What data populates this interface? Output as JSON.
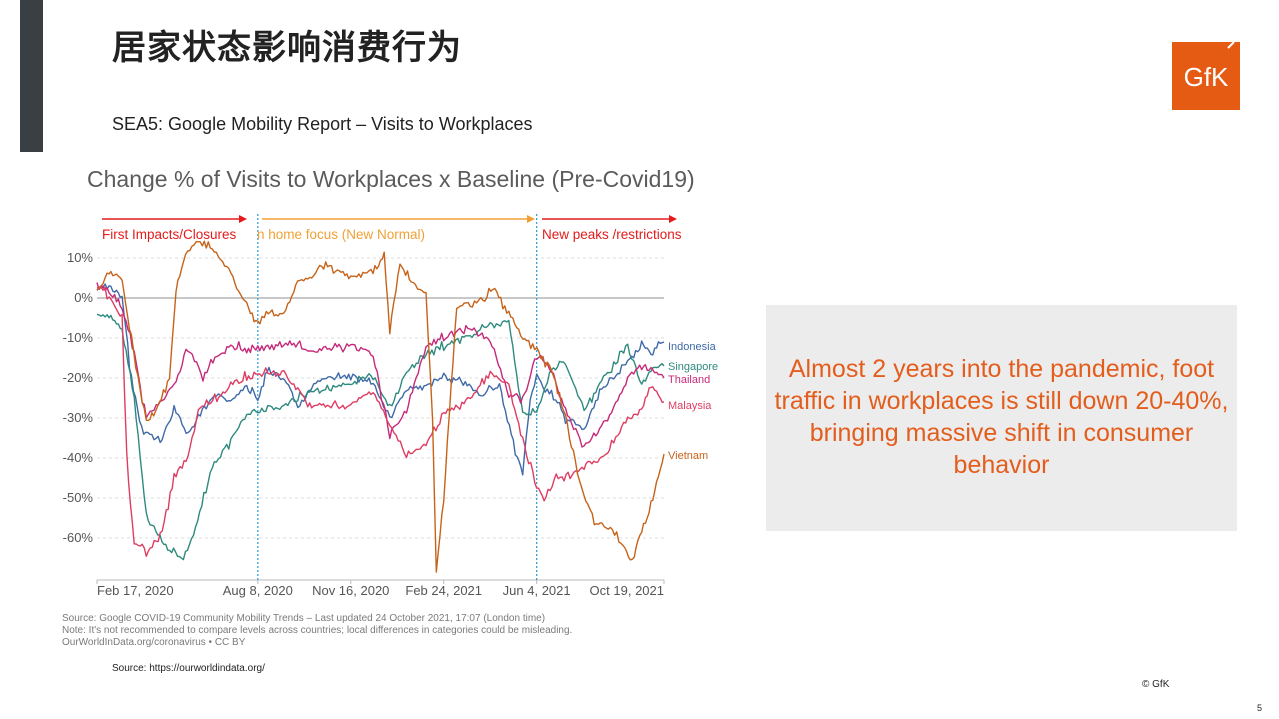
{
  "slide": {
    "title": "居家状态影响消费行为",
    "subtitle": "SEA5: Google Mobility Report – Visits to Workplaces",
    "logo_text": "GfK",
    "callout": "Almost 2 years into the pandemic, foot traffic in workplaces is still down 20-40%, bringing massive shift in consumer behavior",
    "notes": [
      "Source: Google COVID-19 Community Mobility Trends – Last updated 24 October 2021, 17:07 (London time)",
      "Note: It's not recommended to compare levels across countries; local differences in categories could be misleading.",
      "OurWorldInData.org/coronavirus • CC BY"
    ],
    "source": "Source: https://ourworldindata.org/",
    "copyright": "© GfK",
    "page_number": "5",
    "colors": {
      "accent": "#e55b13",
      "left_bar": "#3a3f44",
      "callout_bg": "#ececec",
      "callout_text": "#e35d1c"
    }
  },
  "chart_data": {
    "type": "line",
    "title": "Change % of Visits to Workplaces x Baseline (Pre-Covid19)",
    "x_labels": [
      "Feb 17, 2020",
      "Aug 8, 2020",
      "Nov 16, 2020",
      "Feb 24, 2021",
      "Jun 4, 2021",
      "Oct 19, 2021"
    ],
    "x_range": [
      "2020-02-17",
      "2021-10-19"
    ],
    "ylim": [
      -70,
      12
    ],
    "y_ticks": [
      10,
      0,
      -10,
      -20,
      -30,
      -40,
      -50,
      -60
    ],
    "y_tick_labels": [
      "10%",
      "0%",
      "-10%",
      "-20%",
      "-30%",
      "-40%",
      "-50%",
      "-60%"
    ],
    "grid": true,
    "phases": [
      {
        "label": "First Impacts/Closures",
        "start": "2020-02-17",
        "end": "2020-08-08",
        "color": "#e31b1b"
      },
      {
        "label": "n home focus (New Normal)",
        "start": "2020-08-08",
        "end": "2021-06-04",
        "color": "#f0a136"
      },
      {
        "label": "New peaks /restrictions",
        "start": "2021-06-04",
        "end": "2021-10-19",
        "color": "#e31b1b"
      }
    ],
    "phase_dividers": [
      "2020-08-08",
      "2021-06-04"
    ],
    "series": [
      {
        "name": "Indonesia",
        "color": "#3f6aa8",
        "points": [
          [
            "2020-02-17",
            2
          ],
          [
            "2020-03-01",
            3
          ],
          [
            "2020-03-15",
            0
          ],
          [
            "2020-03-25",
            -20
          ],
          [
            "2020-04-05",
            -33
          ],
          [
            "2020-04-25",
            -36
          ],
          [
            "2020-05-10",
            -28
          ],
          [
            "2020-05-25",
            -34
          ],
          [
            "2020-06-05",
            -30
          ],
          [
            "2020-06-20",
            -24
          ],
          [
            "2020-07-10",
            -26
          ],
          [
            "2020-07-25",
            -22
          ],
          [
            "2020-08-08",
            -25
          ],
          [
            "2020-08-20",
            -18
          ],
          [
            "2020-09-10",
            -22
          ],
          [
            "2020-09-20",
            -28
          ],
          [
            "2020-10-05",
            -22
          ],
          [
            "2020-10-25",
            -20
          ],
          [
            "2020-11-16",
            -19
          ],
          [
            "2020-12-10",
            -21
          ],
          [
            "2020-12-28",
            -30
          ],
          [
            "2021-01-15",
            -23
          ],
          [
            "2021-02-05",
            -22
          ],
          [
            "2021-02-24",
            -20
          ],
          [
            "2021-03-15",
            -21
          ],
          [
            "2021-04-05",
            -24
          ],
          [
            "2021-04-25",
            -22
          ],
          [
            "2021-05-12",
            -38
          ],
          [
            "2021-05-20",
            -44
          ],
          [
            "2021-05-28",
            -25
          ],
          [
            "2021-06-04",
            -20
          ],
          [
            "2021-06-20",
            -24
          ],
          [
            "2021-07-05",
            -30
          ],
          [
            "2021-07-25",
            -33
          ],
          [
            "2021-08-15",
            -22
          ],
          [
            "2021-09-10",
            -16
          ],
          [
            "2021-09-25",
            -12
          ],
          [
            "2021-10-05",
            -14
          ],
          [
            "2021-10-19",
            -11
          ]
        ]
      },
      {
        "name": "Singapore",
        "color": "#2f8a7e",
        "points": [
          [
            "2020-02-17",
            -5
          ],
          [
            "2020-03-01",
            -4
          ],
          [
            "2020-03-15",
            -8
          ],
          [
            "2020-03-28",
            -25
          ],
          [
            "2020-04-10",
            -55
          ],
          [
            "2020-05-01",
            -62
          ],
          [
            "2020-05-20",
            -65
          ],
          [
            "2020-06-02",
            -58
          ],
          [
            "2020-06-20",
            -42
          ],
          [
            "2020-07-10",
            -36
          ],
          [
            "2020-07-25",
            -30
          ],
          [
            "2020-08-08",
            -28
          ],
          [
            "2020-09-05",
            -27
          ],
          [
            "2020-10-05",
            -23
          ],
          [
            "2020-11-16",
            -22
          ],
          [
            "2020-12-10",
            -19
          ],
          [
            "2020-12-28",
            -28
          ],
          [
            "2021-01-15",
            -18
          ],
          [
            "2021-02-05",
            -14
          ],
          [
            "2021-02-24",
            -12
          ],
          [
            "2021-03-20",
            -10
          ],
          [
            "2021-04-15",
            -7
          ],
          [
            "2021-05-05",
            -6
          ],
          [
            "2021-05-20",
            -29
          ],
          [
            "2021-06-04",
            -28
          ],
          [
            "2021-06-20",
            -18
          ],
          [
            "2021-07-05",
            -16
          ],
          [
            "2021-07-25",
            -28
          ],
          [
            "2021-08-15",
            -20
          ],
          [
            "2021-09-10",
            -12
          ],
          [
            "2021-09-25",
            -22
          ],
          [
            "2021-10-05",
            -18
          ],
          [
            "2021-10-19",
            -17
          ]
        ]
      },
      {
        "name": "Thailand",
        "color": "#c6297a",
        "points": [
          [
            "2020-02-17",
            3
          ],
          [
            "2020-03-01",
            2
          ],
          [
            "2020-03-15",
            -2
          ],
          [
            "2020-03-28",
            -14
          ],
          [
            "2020-04-10",
            -30
          ],
          [
            "2020-04-25",
            -26
          ],
          [
            "2020-05-10",
            -22
          ],
          [
            "2020-05-25",
            -12
          ],
          [
            "2020-06-10",
            -20
          ],
          [
            "2020-06-25",
            -14
          ],
          [
            "2020-07-10",
            -12
          ],
          [
            "2020-07-25",
            -13
          ],
          [
            "2020-08-08",
            -13
          ],
          [
            "2020-09-05",
            -11
          ],
          [
            "2020-10-05",
            -13
          ],
          [
            "2020-11-16",
            -12
          ],
          [
            "2020-12-10",
            -14
          ],
          [
            "2020-12-28",
            -34
          ],
          [
            "2021-01-15",
            -28
          ],
          [
            "2021-02-05",
            -12
          ],
          [
            "2021-02-24",
            -10
          ],
          [
            "2021-03-20",
            -8
          ],
          [
            "2021-04-15",
            -10
          ],
          [
            "2021-05-05",
            -24
          ],
          [
            "2021-05-20",
            -26
          ],
          [
            "2021-06-04",
            -14
          ],
          [
            "2021-06-20",
            -18
          ],
          [
            "2021-07-05",
            -28
          ],
          [
            "2021-07-25",
            -37
          ],
          [
            "2021-08-15",
            -32
          ],
          [
            "2021-09-10",
            -20
          ],
          [
            "2021-09-25",
            -17
          ],
          [
            "2021-10-05",
            -18
          ],
          [
            "2021-10-19",
            -20
          ]
        ]
      },
      {
        "name": "Malaysia",
        "color": "#de3d62",
        "points": [
          [
            "2020-02-17",
            3
          ],
          [
            "2020-03-01",
            0
          ],
          [
            "2020-03-15",
            -5
          ],
          [
            "2020-03-20",
            -40
          ],
          [
            "2020-03-28",
            -62
          ],
          [
            "2020-04-10",
            -63
          ],
          [
            "2020-04-25",
            -60
          ],
          [
            "2020-05-10",
            -45
          ],
          [
            "2020-05-25",
            -40
          ],
          [
            "2020-06-05",
            -28
          ],
          [
            "2020-06-25",
            -25
          ],
          [
            "2020-07-10",
            -22
          ],
          [
            "2020-07-25",
            -20
          ],
          [
            "2020-08-08",
            -19
          ],
          [
            "2020-09-05",
            -19
          ],
          [
            "2020-10-05",
            -27
          ],
          [
            "2020-11-16",
            -27
          ],
          [
            "2020-12-10",
            -23
          ],
          [
            "2020-12-28",
            -32
          ],
          [
            "2021-01-15",
            -39
          ],
          [
            "2021-02-05",
            -37
          ],
          [
            "2021-02-24",
            -29
          ],
          [
            "2021-03-20",
            -26
          ],
          [
            "2021-04-15",
            -19
          ],
          [
            "2021-05-05",
            -22
          ],
          [
            "2021-05-20",
            -36
          ],
          [
            "2021-06-04",
            -47
          ],
          [
            "2021-06-12",
            -50
          ],
          [
            "2021-06-25",
            -45
          ],
          [
            "2021-07-10",
            -44
          ],
          [
            "2021-07-25",
            -42
          ],
          [
            "2021-08-15",
            -40
          ],
          [
            "2021-09-10",
            -30
          ],
          [
            "2021-09-25",
            -28
          ],
          [
            "2021-10-05",
            -22
          ],
          [
            "2021-10-19",
            -26
          ]
        ]
      },
      {
        "name": "Vietnam",
        "color": "#c6631a",
        "points": [
          [
            "2020-02-17",
            1
          ],
          [
            "2020-03-01",
            7
          ],
          [
            "2020-03-15",
            4
          ],
          [
            "2020-03-25",
            -10
          ],
          [
            "2020-04-01",
            -20
          ],
          [
            "2020-04-10",
            -31
          ],
          [
            "2020-04-22",
            -27
          ],
          [
            "2020-05-05",
            -20
          ],
          [
            "2020-05-12",
            2
          ],
          [
            "2020-05-20",
            10
          ],
          [
            "2020-06-05",
            14
          ],
          [
            "2020-06-20",
            13
          ],
          [
            "2020-07-10",
            6
          ],
          [
            "2020-07-25",
            -1
          ],
          [
            "2020-08-08",
            -7
          ],
          [
            "2020-08-15",
            -4
          ],
          [
            "2020-09-05",
            -4
          ],
          [
            "2020-09-20",
            4
          ],
          [
            "2020-10-05",
            6
          ],
          [
            "2020-10-20",
            8
          ],
          [
            "2020-11-16",
            5
          ],
          [
            "2020-12-10",
            7
          ],
          [
            "2020-12-22",
            10
          ],
          [
            "2020-12-28",
            -8
          ],
          [
            "2021-01-08",
            8
          ],
          [
            "2021-01-20",
            4
          ],
          [
            "2021-02-05",
            1
          ],
          [
            "2021-02-12",
            -30
          ],
          [
            "2021-02-16",
            -68
          ],
          [
            "2021-02-24",
            -50
          ],
          [
            "2021-03-10",
            -2
          ],
          [
            "2021-03-20",
            -2
          ],
          [
            "2021-04-05",
            -1
          ],
          [
            "2021-04-20",
            2
          ],
          [
            "2021-05-05",
            -4
          ],
          [
            "2021-05-20",
            -10
          ],
          [
            "2021-06-04",
            -13
          ],
          [
            "2021-06-20",
            -18
          ],
          [
            "2021-07-05",
            -30
          ],
          [
            "2021-07-20",
            -46
          ],
          [
            "2021-08-05",
            -56
          ],
          [
            "2021-08-20",
            -57
          ],
          [
            "2021-09-05",
            -62
          ],
          [
            "2021-09-15",
            -66
          ],
          [
            "2021-09-25",
            -58
          ],
          [
            "2021-10-05",
            -52
          ],
          [
            "2021-10-19",
            -39
          ]
        ]
      }
    ]
  }
}
